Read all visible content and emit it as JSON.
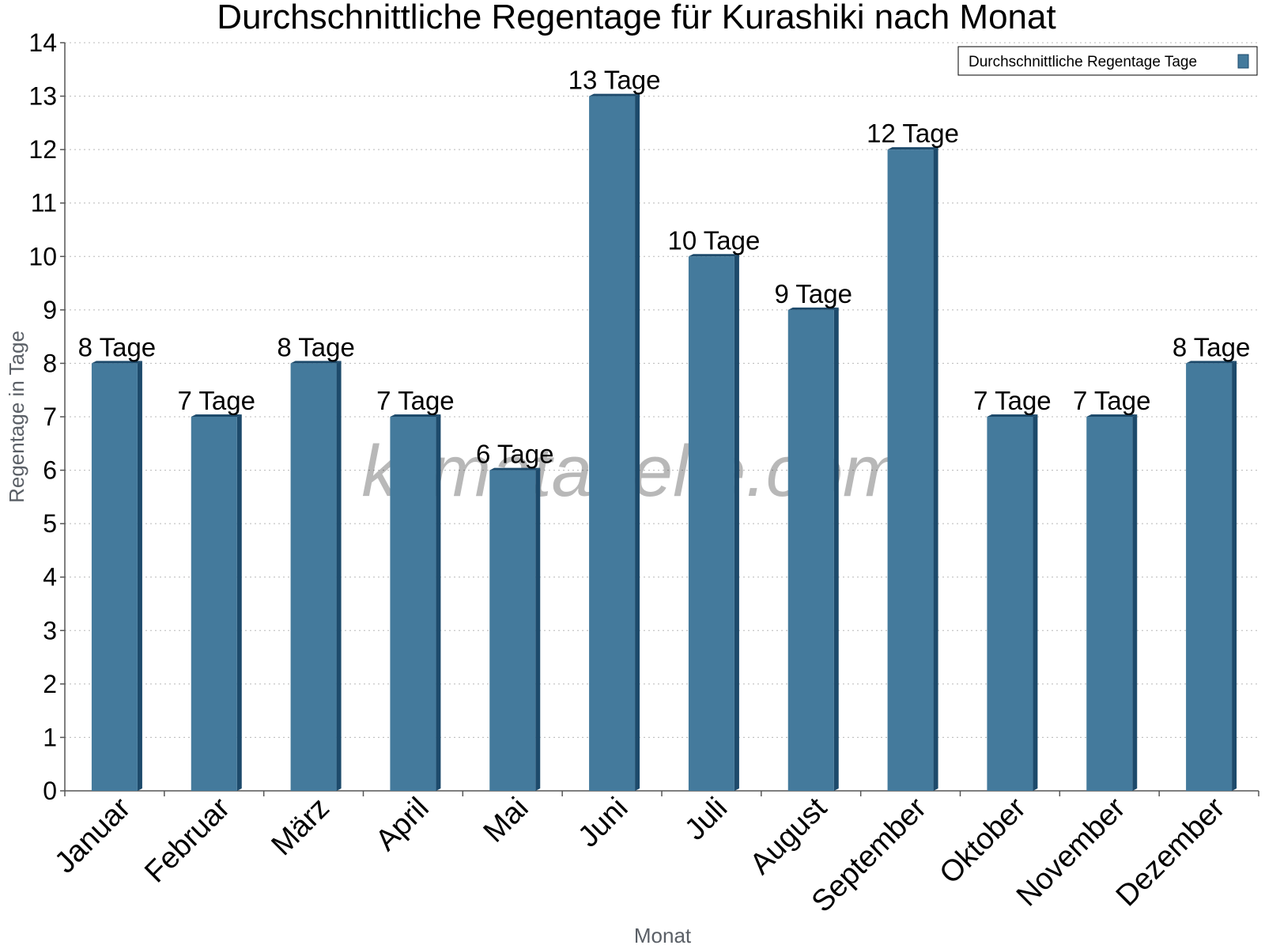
{
  "chart_data": {
    "type": "bar",
    "title": "Durchschnittliche Regentage für Kurashiki nach Monat",
    "xlabel": "Monat",
    "ylabel": "Regentage in Tage",
    "ylim": [
      0,
      14
    ],
    "yticks": [
      0,
      1,
      2,
      3,
      4,
      5,
      6,
      7,
      8,
      9,
      10,
      11,
      12,
      13,
      14
    ],
    "grid": true,
    "legend_position": "top-right",
    "categories": [
      "Januar",
      "Februar",
      "März",
      "April",
      "Mai",
      "Juni",
      "Juli",
      "August",
      "September",
      "Oktober",
      "November",
      "Dezember"
    ],
    "series": [
      {
        "name": "Durchschnittliche Regentage Tage",
        "values": [
          8,
          7,
          8,
          7,
          6,
          13,
          10,
          9,
          12,
          7,
          7,
          8
        ],
        "data_labels": [
          "8 Tage",
          "7 Tage",
          "8 Tage",
          "7 Tage",
          "6 Tage",
          "13 Tage",
          "10 Tage",
          "9 Tage",
          "12 Tage",
          "7 Tage",
          "7 Tage",
          "8 Tage"
        ],
        "color": "#447a9c",
        "side_color": "#1d4a6b"
      }
    ],
    "watermark": "klimatabelle.com"
  }
}
